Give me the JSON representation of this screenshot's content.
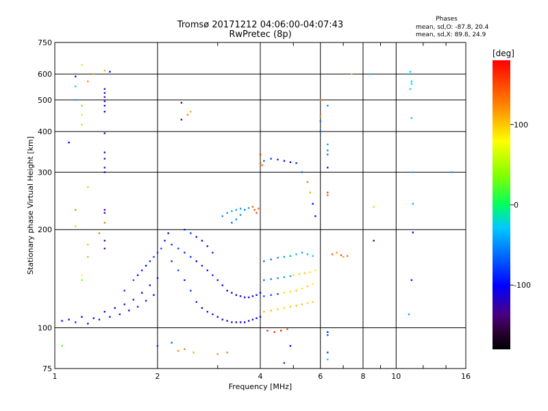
{
  "chart_data": {
    "type": "scatter",
    "title": "Tromsø 20171212 04:06:00-04:07:43",
    "subtitle": "RwPretec (8p)",
    "xlabel": "Frequency [MHz]",
    "ylabel": "Stationary phase Virtual Height [km]",
    "x_scale": "log",
    "y_scale": "log",
    "xlim": [
      1,
      16
    ],
    "ylim": [
      75,
      750
    ],
    "xticks": [
      1,
      2,
      4,
      6,
      8,
      10,
      16
    ],
    "xtick_labels": [
      "1",
      "2",
      "4",
      "6",
      "8",
      "10",
      "16"
    ],
    "yticks": [
      75,
      100,
      200,
      300,
      400,
      500,
      600,
      750
    ],
    "ytick_labels": [
      "75",
      "100",
      "200",
      "300",
      "400",
      "500",
      "600",
      "750"
    ],
    "grid": true,
    "stats": {
      "heading": "Phases",
      "line_o": "mean, sd,O: -87.8, 20.4",
      "line_x": "mean, sd,X:  89.8, 24.9"
    },
    "colorbar": {
      "label": "[deg]",
      "range": [
        -180,
        180
      ],
      "ticks": [
        100,
        0,
        -100
      ],
      "tick_labels": [
        "100",
        "0",
        "-100"
      ],
      "colormap": "rainbow (black at -180, blue -100, cyan -30, green 0, yellow 100, red 180)"
    },
    "series": [
      {
        "points": [
          [
            1.05,
            105,
            -100
          ],
          [
            1.1,
            106,
            -95
          ],
          [
            1.15,
            104,
            -90
          ],
          [
            1.2,
            108,
            -100
          ],
          [
            1.25,
            103,
            -105
          ],
          [
            1.3,
            107,
            -95
          ],
          [
            1.35,
            106,
            -90
          ],
          [
            1.4,
            112,
            -100
          ],
          [
            1.45,
            108,
            -95
          ],
          [
            1.5,
            115,
            -100
          ],
          [
            1.55,
            110,
            -90
          ],
          [
            1.6,
            118,
            -95
          ],
          [
            1.65,
            113,
            -100
          ],
          [
            1.7,
            122,
            -90
          ],
          [
            1.75,
            116,
            -95
          ],
          [
            1.8,
            128,
            -100
          ],
          [
            1.85,
            121,
            -90
          ],
          [
            1.9,
            135,
            -95
          ],
          [
            1.95,
            126,
            -100
          ],
          [
            2.0,
            142,
            -90
          ],
          [
            1.6,
            130,
            -80
          ],
          [
            1.7,
            140,
            -70
          ],
          [
            1.8,
            150,
            -85
          ],
          [
            1.9,
            160,
            -90
          ],
          [
            2.0,
            170,
            -75
          ],
          [
            1.75,
            145,
            -95
          ],
          [
            1.85,
            155,
            -100
          ],
          [
            1.95,
            165,
            -80
          ],
          [
            2.05,
            175,
            -70
          ],
          [
            2.1,
            185,
            -90
          ],
          [
            2.15,
            195,
            -100
          ],
          [
            2.2,
            160,
            -85
          ],
          [
            2.3,
            150,
            -70
          ],
          [
            2.4,
            140,
            -95
          ],
          [
            2.5,
            130,
            -80
          ],
          [
            2.6,
            120,
            -90
          ],
          [
            2.7,
            115,
            -100
          ],
          [
            2.8,
            112,
            -95
          ],
          [
            2.9,
            110,
            -90
          ],
          [
            3.0,
            108,
            -100
          ],
          [
            3.1,
            106,
            -105
          ],
          [
            3.2,
            105,
            -110
          ],
          [
            3.3,
            104,
            -115
          ],
          [
            3.4,
            104,
            -110
          ],
          [
            3.5,
            104,
            -105
          ],
          [
            3.6,
            104,
            -110
          ],
          [
            3.7,
            105,
            -115
          ],
          [
            3.8,
            106,
            -110
          ],
          [
            3.9,
            107,
            -105
          ],
          [
            4.0,
            108,
            -110
          ],
          [
            2.2,
            180,
            -80
          ],
          [
            2.3,
            175,
            -75
          ],
          [
            2.4,
            170,
            -90
          ],
          [
            2.5,
            165,
            -85
          ],
          [
            2.6,
            160,
            -100
          ],
          [
            2.7,
            155,
            -95
          ],
          [
            2.8,
            150,
            -90
          ],
          [
            2.9,
            145,
            -85
          ],
          [
            3.0,
            140,
            -95
          ],
          [
            3.1,
            135,
            -100
          ],
          [
            3.2,
            130,
            -105
          ],
          [
            3.3,
            128,
            -110
          ],
          [
            3.4,
            126,
            -115
          ],
          [
            3.5,
            125,
            -110
          ],
          [
            3.6,
            124,
            -105
          ],
          [
            3.7,
            124,
            -110
          ],
          [
            3.8,
            125,
            -115
          ],
          [
            3.9,
            126,
            -110
          ],
          [
            4.0,
            128,
            -105
          ],
          [
            2.4,
            200,
            -90
          ],
          [
            2.5,
            195,
            -80
          ],
          [
            2.6,
            190,
            -95
          ],
          [
            2.7,
            185,
            -100
          ],
          [
            2.8,
            178,
            -90
          ],
          [
            2.9,
            170,
            -85
          ],
          [
            3.1,
            220,
            -50
          ],
          [
            3.2,
            225,
            -45
          ],
          [
            3.3,
            228,
            -40
          ],
          [
            3.4,
            230,
            -45
          ],
          [
            3.5,
            232,
            -50
          ],
          [
            3.6,
            230,
            -55
          ],
          [
            3.7,
            233,
            -45
          ],
          [
            3.3,
            210,
            -60
          ],
          [
            3.4,
            215,
            -55
          ],
          [
            3.5,
            222,
            -50
          ],
          [
            3.8,
            235,
            140
          ],
          [
            3.85,
            230,
            145
          ],
          [
            3.9,
            225,
            150
          ],
          [
            3.95,
            232,
            140
          ],
          [
            4.0,
            340,
            160
          ],
          [
            4.0,
            320,
            150
          ],
          [
            4.05,
            315,
            140
          ],
          [
            4.1,
            325,
            -70
          ],
          [
            4.3,
            330,
            -80
          ],
          [
            4.5,
            328,
            -90
          ],
          [
            4.7,
            325,
            -95
          ],
          [
            4.9,
            322,
            -100
          ],
          [
            5.1,
            320,
            -90
          ],
          [
            5.3,
            300,
            -60
          ],
          [
            5.5,
            280,
            130
          ],
          [
            5.6,
            260,
            110
          ],
          [
            5.7,
            240,
            -100
          ],
          [
            5.8,
            220,
            -110
          ],
          [
            4.1,
            160,
            -60
          ],
          [
            4.3,
            162,
            -55
          ],
          [
            4.5,
            164,
            -50
          ],
          [
            4.7,
            165,
            -45
          ],
          [
            4.9,
            166,
            -40
          ],
          [
            5.1,
            168,
            -35
          ],
          [
            5.3,
            170,
            -40
          ],
          [
            5.5,
            168,
            -35
          ],
          [
            5.7,
            166,
            -30
          ],
          [
            4.1,
            140,
            -60
          ],
          [
            4.3,
            141,
            -55
          ],
          [
            4.5,
            142,
            -50
          ],
          [
            4.7,
            143,
            -45
          ],
          [
            4.9,
            144,
            -40
          ],
          [
            5.0,
            145,
            90
          ],
          [
            5.2,
            146,
            95
          ],
          [
            5.4,
            147,
            100
          ],
          [
            5.6,
            148,
            90
          ],
          [
            5.8,
            150,
            85
          ],
          [
            4.1,
            125,
            -70
          ],
          [
            4.3,
            126,
            -75
          ],
          [
            4.5,
            127,
            -80
          ],
          [
            4.7,
            128,
            90
          ],
          [
            4.9,
            129,
            95
          ],
          [
            5.1,
            130,
            100
          ],
          [
            5.3,
            132,
            90
          ],
          [
            5.5,
            134,
            95
          ],
          [
            5.7,
            136,
            85
          ],
          [
            4.1,
            112,
            110
          ],
          [
            4.3,
            113,
            105
          ],
          [
            4.5,
            114,
            100
          ],
          [
            4.7,
            115,
            95
          ],
          [
            4.9,
            116,
            100
          ],
          [
            5.1,
            117,
            105
          ],
          [
            5.3,
            118,
            100
          ],
          [
            5.5,
            119,
            95
          ],
          [
            5.7,
            120,
            100
          ],
          [
            4.2,
            98,
            165
          ],
          [
            4.4,
            97,
            160
          ],
          [
            4.6,
            98,
            170
          ],
          [
            4.8,
            99,
            150
          ],
          [
            4.9,
            88,
            -100
          ],
          [
            6.3,
            97,
            -90
          ],
          [
            6.3,
            84,
            -80
          ],
          [
            6.3,
            80,
            -30
          ],
          [
            6.3,
            95,
            -70
          ],
          [
            6.5,
            168,
            140
          ],
          [
            6.7,
            170,
            120
          ],
          [
            6.9,
            167,
            150
          ],
          [
            7.0,
            165,
            110
          ],
          [
            7.2,
            166,
            130
          ],
          [
            6.3,
            260,
            150
          ],
          [
            6.3,
            255,
            140
          ],
          [
            6.3,
            365,
            -40
          ],
          [
            6.3,
            350,
            -50
          ],
          [
            6.3,
            340,
            -60
          ],
          [
            6.3,
            310,
            -120
          ],
          [
            6.3,
            480,
            -50
          ],
          [
            6.0,
            500,
            130
          ],
          [
            6.0,
            445,
            120
          ],
          [
            6.0,
            430,
            -60
          ],
          [
            6.0,
            400,
            -70
          ],
          [
            7.4,
            600,
            100
          ],
          [
            8.4,
            600,
            -30
          ],
          [
            8.6,
            235,
            100
          ],
          [
            8.6,
            185,
            -130
          ],
          [
            10.8,
            600,
            -30
          ],
          [
            11.0,
            610,
            -30
          ],
          [
            11.1,
            570,
            -25
          ],
          [
            11.1,
            560,
            -30
          ],
          [
            11.0,
            540,
            -20
          ],
          [
            11.1,
            440,
            -35
          ],
          [
            11.2,
            300,
            -30
          ],
          [
            11.2,
            240,
            -40
          ],
          [
            11.2,
            196,
            -100
          ],
          [
            11.1,
            140,
            -110
          ],
          [
            10.9,
            110,
            -40
          ],
          [
            14.5,
            300,
            -40
          ],
          [
            1.2,
            640,
            60
          ],
          [
            1.4,
            615,
            110
          ],
          [
            1.45,
            610,
            -100
          ],
          [
            1.3,
            600,
            120
          ],
          [
            1.25,
            570,
            120
          ],
          [
            1.15,
            590,
            -100
          ],
          [
            1.15,
            550,
            -30
          ],
          [
            1.15,
            500,
            -40
          ],
          [
            1.2,
            480,
            30
          ],
          [
            1.2,
            450,
            60
          ],
          [
            1.2,
            420,
            100
          ],
          [
            1.4,
            540,
            -120
          ],
          [
            1.4,
            525,
            -110
          ],
          [
            1.4,
            510,
            -130
          ],
          [
            1.4,
            495,
            -120
          ],
          [
            1.4,
            480,
            -110
          ],
          [
            1.4,
            460,
            -100
          ],
          [
            1.4,
            395,
            -120
          ],
          [
            1.4,
            345,
            -110
          ],
          [
            1.4,
            330,
            -130
          ],
          [
            1.4,
            310,
            -120
          ],
          [
            1.4,
            300,
            -110
          ],
          [
            1.4,
            230,
            -120
          ],
          [
            1.4,
            225,
            -130
          ],
          [
            1.4,
            210,
            130
          ],
          [
            1.4,
            185,
            -120
          ],
          [
            1.4,
            175,
            -130
          ],
          [
            1.1,
            370,
            -100
          ],
          [
            1.25,
            270,
            100
          ],
          [
            1.15,
            230,
            120
          ],
          [
            1.15,
            205,
            100
          ],
          [
            1.35,
            195,
            130
          ],
          [
            1.25,
            180,
            100
          ],
          [
            1.25,
            165,
            110
          ],
          [
            1.2,
            145,
            80
          ],
          [
            1.2,
            140,
            40
          ],
          [
            1.05,
            88,
            20
          ],
          [
            2.35,
            490,
            -110
          ],
          [
            2.35,
            435,
            -120
          ],
          [
            2.45,
            450,
            130
          ],
          [
            2.5,
            460,
            110
          ],
          [
            2.3,
            85,
            120
          ],
          [
            2.4,
            86,
            130
          ],
          [
            2.55,
            84,
            110
          ],
          [
            3.0,
            83,
            120
          ],
          [
            3.2,
            84,
            130
          ],
          [
            2.0,
            88,
            -80
          ],
          [
            2.2,
            90,
            -60
          ],
          [
            4.7,
            78,
            -80
          ]
        ]
      }
    ]
  }
}
